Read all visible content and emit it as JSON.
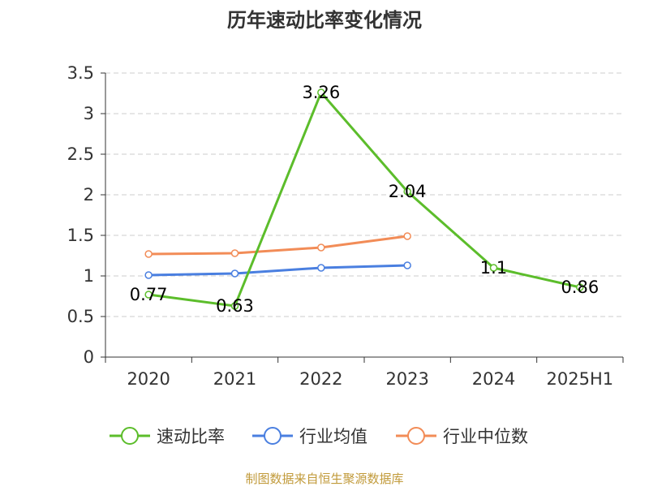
{
  "chart_data": {
    "type": "line",
    "title": "历年速动比率变化情况",
    "categories": [
      "2020",
      "2021",
      "2022",
      "2023",
      "2024",
      "2025H1"
    ],
    "ylim": [
      0,
      3.5
    ],
    "yticks": [
      "0",
      "0.5",
      "1",
      "1.5",
      "2",
      "2.5",
      "3",
      "3.5"
    ],
    "grid": true,
    "legend_position": "bottom",
    "series": [
      {
        "name": "速动比率",
        "color": "#5cbd2b",
        "values": [
          0.77,
          0.63,
          3.26,
          2.04,
          1.1,
          0.86
        ],
        "labels": [
          "0.77",
          "0.63",
          "3.26",
          "2.04",
          "1.1",
          "0.86"
        ]
      },
      {
        "name": "行业均值",
        "color": "#4a7fe0",
        "values": [
          1.01,
          1.03,
          1.1,
          1.13,
          null,
          null
        ]
      },
      {
        "name": "行业中位数",
        "color": "#f28c57",
        "values": [
          1.27,
          1.28,
          1.35,
          1.49,
          null,
          null
        ]
      }
    ],
    "source": "制图数据来自恒生聚源数据库"
  }
}
